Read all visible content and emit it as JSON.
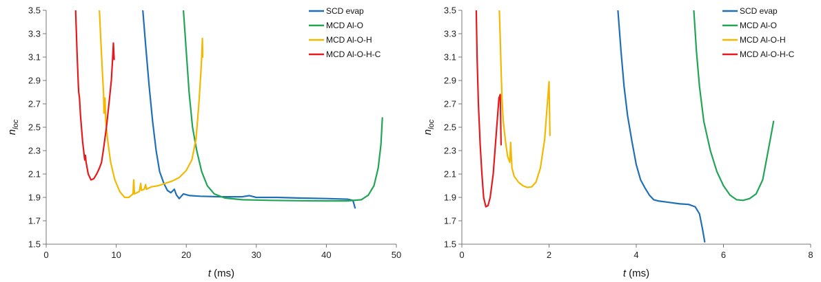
{
  "chart_data": [
    {
      "type": "line",
      "xlabel": {
        "italic": "t",
        "rest": " (ms)"
      },
      "ylabel": {
        "base": "n",
        "sub": "loc"
      },
      "xlim": [
        0,
        50
      ],
      "ylim": [
        1.5,
        3.5
      ],
      "xticks": [
        "0",
        "10",
        "20",
        "30",
        "40",
        "50"
      ],
      "yticks": [
        "1.5",
        "1.7",
        "1.9",
        "2.1",
        "2.3",
        "2.5",
        "2.7",
        "2.9",
        "3.1",
        "3.3",
        "3.5"
      ],
      "legend_position": "top-right",
      "grid": false,
      "series": [
        {
          "name": "SCD evap",
          "color": "#1f6fb5",
          "points": [
            [
              13.8,
              3.5
            ],
            [
              14.2,
              3.2
            ],
            [
              14.7,
              2.85
            ],
            [
              15.2,
              2.55
            ],
            [
              15.7,
              2.3
            ],
            [
              16.2,
              2.12
            ],
            [
              16.8,
              2.02
            ],
            [
              17.3,
              1.96
            ],
            [
              17.8,
              1.94
            ],
            [
              18.3,
              1.97
            ],
            [
              18.6,
              1.92
            ],
            [
              19.0,
              1.89
            ],
            [
              19.6,
              1.93
            ],
            [
              20.5,
              1.915
            ],
            [
              22,
              1.91
            ],
            [
              25,
              1.905
            ],
            [
              28,
              1.905
            ],
            [
              29,
              1.915
            ],
            [
              30,
              1.9
            ],
            [
              33,
              1.9
            ],
            [
              36,
              1.895
            ],
            [
              40,
              1.89
            ],
            [
              43,
              1.885
            ],
            [
              43.8,
              1.875
            ],
            [
              44.1,
              1.81
            ]
          ]
        },
        {
          "name": "MCD Al-O",
          "color": "#22a455",
          "points": [
            [
              19.6,
              3.5
            ],
            [
              20.0,
              3.15
            ],
            [
              20.4,
              2.8
            ],
            [
              20.9,
              2.5
            ],
            [
              21.5,
              2.3
            ],
            [
              22.2,
              2.12
            ],
            [
              23.0,
              2.0
            ],
            [
              24.0,
              1.93
            ],
            [
              25.5,
              1.895
            ],
            [
              28,
              1.88
            ],
            [
              32,
              1.875
            ],
            [
              36,
              1.872
            ],
            [
              40,
              1.87
            ],
            [
              43,
              1.87
            ],
            [
              45,
              1.88
            ],
            [
              46,
              1.92
            ],
            [
              46.8,
              2.0
            ],
            [
              47.4,
              2.15
            ],
            [
              47.8,
              2.35
            ],
            [
              48.0,
              2.58
            ]
          ]
        },
        {
          "name": "MCD Al-O-H",
          "color": "#f3b800",
          "points": [
            [
              7.6,
              3.5
            ],
            [
              7.8,
              3.25
            ],
            [
              8.0,
              3.0
            ],
            [
              8.2,
              2.78
            ],
            [
              8.25,
              2.62
            ],
            [
              8.4,
              2.75
            ],
            [
              8.5,
              2.55
            ],
            [
              8.8,
              2.38
            ],
            [
              9.2,
              2.2
            ],
            [
              9.8,
              2.05
            ],
            [
              10.5,
              1.95
            ],
            [
              11.2,
              1.9
            ],
            [
              11.8,
              1.9
            ],
            [
              12.4,
              1.93
            ],
            [
              12.5,
              2.05
            ],
            [
              12.6,
              1.93
            ],
            [
              13.3,
              1.95
            ],
            [
              13.5,
              2.02
            ],
            [
              13.6,
              1.96
            ],
            [
              14,
              1.97
            ],
            [
              14.2,
              2.01
            ],
            [
              14.3,
              1.97
            ],
            [
              15,
              1.99
            ],
            [
              16,
              2.0
            ],
            [
              17,
              2.02
            ],
            [
              18,
              2.04
            ],
            [
              19,
              2.07
            ],
            [
              20,
              2.13
            ],
            [
              20.8,
              2.22
            ],
            [
              21.4,
              2.4
            ],
            [
              21.8,
              2.7
            ],
            [
              22.1,
              2.98
            ],
            [
              22.2,
              3.1
            ],
            [
              22.3,
              3.26
            ],
            [
              22.35,
              3.1
            ]
          ]
        },
        {
          "name": "MCD Al-O-H-C",
          "color": "#e41a1c",
          "points": [
            [
              4.2,
              3.5
            ],
            [
              4.4,
              3.15
            ],
            [
              4.6,
              2.85
            ],
            [
              4.65,
              2.8
            ],
            [
              4.75,
              2.75
            ],
            [
              4.9,
              2.6
            ],
            [
              5.2,
              2.38
            ],
            [
              5.5,
              2.22
            ],
            [
              5.6,
              2.26
            ],
            [
              5.7,
              2.2
            ],
            [
              6.0,
              2.1
            ],
            [
              6.4,
              2.05
            ],
            [
              6.8,
              2.06
            ],
            [
              7.2,
              2.1
            ],
            [
              7.6,
              2.15
            ],
            [
              7.9,
              2.2
            ],
            [
              8.2,
              2.32
            ],
            [
              8.6,
              2.5
            ],
            [
              9.0,
              2.72
            ],
            [
              9.3,
              2.9
            ],
            [
              9.5,
              3.1
            ],
            [
              9.6,
              3.22
            ],
            [
              9.7,
              3.08
            ]
          ]
        }
      ]
    },
    {
      "type": "line",
      "xlabel": {
        "italic": "t",
        "rest": " (ms)"
      },
      "ylabel": {
        "base": "n",
        "sub": "loc"
      },
      "xlim": [
        0,
        8
      ],
      "ylim": [
        1.5,
        3.5
      ],
      "xticks": [
        "0",
        "2",
        "4",
        "6",
        "8"
      ],
      "yticks": [
        "1.5",
        "1.7",
        "1.9",
        "2.1",
        "2.3",
        "2.5",
        "2.7",
        "2.9",
        "3.1",
        "3.3",
        "3.5"
      ],
      "legend_position": "top-right",
      "grid": false,
      "series": [
        {
          "name": "SCD evap",
          "color": "#1f6fb5",
          "points": [
            [
              3.58,
              3.5
            ],
            [
              3.65,
              3.15
            ],
            [
              3.72,
              2.85
            ],
            [
              3.8,
              2.6
            ],
            [
              3.9,
              2.38
            ],
            [
              4.0,
              2.18
            ],
            [
              4.1,
              2.05
            ],
            [
              4.2,
              1.98
            ],
            [
              4.3,
              1.92
            ],
            [
              4.4,
              1.88
            ],
            [
              4.5,
              1.87
            ],
            [
              4.7,
              1.86
            ],
            [
              5.0,
              1.845
            ],
            [
              5.2,
              1.84
            ],
            [
              5.35,
              1.82
            ],
            [
              5.45,
              1.76
            ],
            [
              5.52,
              1.63
            ],
            [
              5.57,
              1.52
            ]
          ]
        },
        {
          "name": "MCD Al-O",
          "color": "#22a455",
          "points": [
            [
              5.32,
              3.5
            ],
            [
              5.38,
              3.15
            ],
            [
              5.45,
              2.85
            ],
            [
              5.55,
              2.55
            ],
            [
              5.7,
              2.3
            ],
            [
              5.85,
              2.12
            ],
            [
              6.0,
              2.0
            ],
            [
              6.15,
              1.92
            ],
            [
              6.3,
              1.88
            ],
            [
              6.45,
              1.875
            ],
            [
              6.6,
              1.89
            ],
            [
              6.75,
              1.93
            ],
            [
              6.9,
              2.05
            ],
            [
              7.0,
              2.25
            ],
            [
              7.1,
              2.45
            ],
            [
              7.15,
              2.55
            ]
          ]
        },
        {
          "name": "MCD Al-O-H",
          "color": "#f3b800",
          "points": [
            [
              0.86,
              3.5
            ],
            [
              0.88,
              3.25
            ],
            [
              0.9,
              3.0
            ],
            [
              0.92,
              2.75
            ],
            [
              0.95,
              2.55
            ],
            [
              1.0,
              2.38
            ],
            [
              1.05,
              2.25
            ],
            [
              1.1,
              2.2
            ],
            [
              1.12,
              2.37
            ],
            [
              1.15,
              2.15
            ],
            [
              1.2,
              2.08
            ],
            [
              1.3,
              2.03
            ],
            [
              1.4,
              2.0
            ],
            [
              1.5,
              1.985
            ],
            [
              1.6,
              1.99
            ],
            [
              1.7,
              2.03
            ],
            [
              1.8,
              2.15
            ],
            [
              1.9,
              2.4
            ],
            [
              1.96,
              2.7
            ],
            [
              2.0,
              2.89
            ],
            [
              2.02,
              2.43
            ]
          ]
        },
        {
          "name": "MCD Al-O-H-C",
          "color": "#e41a1c",
          "points": [
            [
              0.33,
              3.5
            ],
            [
              0.35,
              3.1
            ],
            [
              0.38,
              2.7
            ],
            [
              0.42,
              2.35
            ],
            [
              0.46,
              2.1
            ],
            [
              0.5,
              1.9
            ],
            [
              0.55,
              1.82
            ],
            [
              0.6,
              1.83
            ],
            [
              0.65,
              1.9
            ],
            [
              0.72,
              2.1
            ],
            [
              0.8,
              2.5
            ],
            [
              0.85,
              2.75
            ],
            [
              0.88,
              2.78
            ],
            [
              0.9,
              2.35
            ]
          ]
        }
      ]
    }
  ]
}
